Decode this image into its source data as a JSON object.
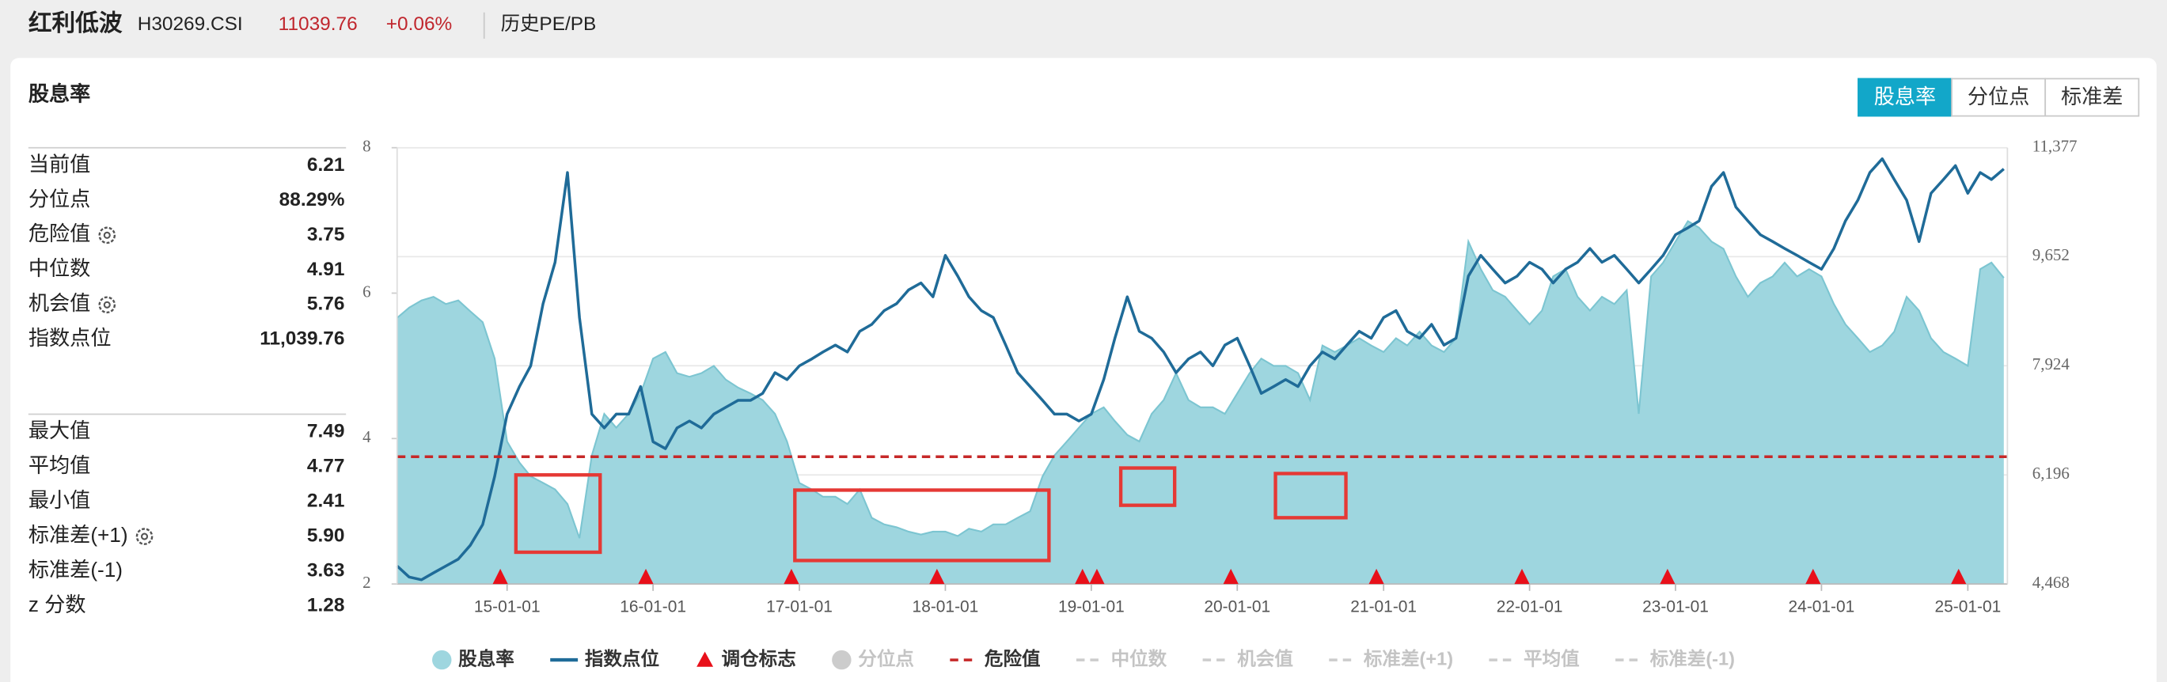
{
  "header": {
    "title": "红利低波",
    "code": "H30269.CSI",
    "price": "11039.76",
    "change": "+0.06%",
    "link": "历史PE/PB"
  },
  "panel": {
    "title": "股息率",
    "tabs": [
      {
        "label": "股息率",
        "active": true
      },
      {
        "label": "分位点",
        "active": false
      },
      {
        "label": "标准差",
        "active": false
      }
    ],
    "stats": [
      [
        {
          "label": "当前值",
          "value": "6.21"
        },
        {
          "label": "分位点",
          "value": "88.29%"
        },
        {
          "label": "危险值",
          "value": "3.75",
          "gear": true
        },
        {
          "label": "中位数",
          "value": "4.91"
        },
        {
          "label": "机会值",
          "value": "5.76",
          "gear": true
        },
        {
          "label": "指数点位",
          "value": "11,039.76"
        }
      ],
      [
        {
          "label": "最大值",
          "value": "7.49"
        },
        {
          "label": "平均值",
          "value": "4.77"
        },
        {
          "label": "最小值",
          "value": "2.41"
        },
        {
          "label": "标准差(+1)",
          "value": "5.90",
          "gear": true
        },
        {
          "label": "标准差(-1)",
          "value": "3.63"
        },
        {
          "label": "z 分数",
          "value": "1.28"
        }
      ]
    ]
  },
  "chart_data": {
    "type": "area-line",
    "x": [
      "14-04-01",
      "14-05-01",
      "14-06-01",
      "14-07-01",
      "14-08-01",
      "14-09-01",
      "14-10-01",
      "14-11-01",
      "14-12-01",
      "15-01-01",
      "15-02-01",
      "15-03-01",
      "15-04-01",
      "15-05-01",
      "15-06-01",
      "15-07-01",
      "15-08-01",
      "15-09-01",
      "15-10-01",
      "15-11-01",
      "15-12-01",
      "16-01-01",
      "16-02-01",
      "16-03-01",
      "16-04-01",
      "16-05-01",
      "16-06-01",
      "16-07-01",
      "16-08-01",
      "16-09-01",
      "16-10-01",
      "16-11-01",
      "16-12-01",
      "17-01-01",
      "17-02-01",
      "17-03-01",
      "17-04-01",
      "17-05-01",
      "17-06-01",
      "17-07-01",
      "17-08-01",
      "17-09-01",
      "17-10-01",
      "17-11-01",
      "17-12-01",
      "18-01-01",
      "18-02-01",
      "18-03-01",
      "18-04-01",
      "18-05-01",
      "18-06-01",
      "18-07-01",
      "18-08-01",
      "18-09-01",
      "18-10-01",
      "18-11-01",
      "18-12-01",
      "19-01-01",
      "19-02-01",
      "19-03-01",
      "19-04-01",
      "19-05-01",
      "19-06-01",
      "19-07-01",
      "19-08-01",
      "19-09-01",
      "19-10-01",
      "19-11-01",
      "19-12-01",
      "20-01-01",
      "20-02-01",
      "20-03-01",
      "20-04-01",
      "20-05-01",
      "20-06-01",
      "20-07-01",
      "20-08-01",
      "20-09-01",
      "20-10-01",
      "20-11-01",
      "20-12-01",
      "21-01-01",
      "21-02-01",
      "21-03-01",
      "21-04-01",
      "21-05-01",
      "21-06-01",
      "21-07-01",
      "21-08-01",
      "21-09-01",
      "21-10-01",
      "21-11-01",
      "21-12-01",
      "22-01-01",
      "22-02-01",
      "22-03-01",
      "22-04-01",
      "22-05-01",
      "22-06-01",
      "22-07-01",
      "22-08-01",
      "22-09-01",
      "22-10-01",
      "22-11-01",
      "22-12-01",
      "23-01-01",
      "23-02-01",
      "23-03-01",
      "23-04-01",
      "23-05-01",
      "23-06-01",
      "23-07-01",
      "23-08-01",
      "23-09-01",
      "23-10-01",
      "23-11-01",
      "23-12-01",
      "24-01-01",
      "24-02-01",
      "24-03-01",
      "24-04-01",
      "24-05-01",
      "24-06-01",
      "24-07-01",
      "24-08-01",
      "24-09-01",
      "24-10-01",
      "24-11-01",
      "24-12-01",
      "25-01-01",
      "25-02-01",
      "25-03-01",
      "25-04-01"
    ],
    "series": [
      {
        "name": "股息率",
        "color": "#9ed6df",
        "values": [
          5.66,
          5.8,
          5.9,
          5.95,
          5.85,
          5.9,
          5.75,
          5.6,
          5.1,
          3.96,
          3.67,
          3.48,
          3.39,
          3.3,
          3.1,
          2.63,
          3.77,
          4.34,
          4.15,
          4.34,
          4.62,
          5.1,
          5.19,
          4.9,
          4.85,
          4.9,
          5.0,
          4.81,
          4.7,
          4.62,
          4.53,
          4.34,
          3.96,
          3.39,
          3.3,
          3.2,
          3.2,
          3.1,
          3.3,
          2.91,
          2.82,
          2.78,
          2.72,
          2.68,
          2.72,
          2.72,
          2.66,
          2.76,
          2.72,
          2.82,
          2.82,
          2.91,
          3.0,
          3.48,
          3.77,
          3.96,
          4.15,
          4.34,
          4.43,
          4.24,
          4.05,
          3.96,
          4.34,
          4.53,
          4.9,
          4.53,
          4.43,
          4.43,
          4.34,
          4.62,
          4.9,
          5.1,
          5.0,
          5.0,
          4.9,
          4.53,
          5.28,
          5.19,
          5.28,
          5.38,
          5.28,
          5.19,
          5.38,
          5.28,
          5.47,
          5.28,
          5.19,
          5.38,
          6.71,
          6.33,
          6.04,
          5.95,
          5.76,
          5.57,
          5.76,
          6.23,
          6.33,
          5.95,
          5.76,
          5.95,
          5.85,
          6.04,
          4.34,
          6.23,
          6.42,
          6.71,
          6.99,
          6.9,
          6.71,
          6.61,
          6.23,
          5.95,
          6.14,
          6.23,
          6.42,
          6.23,
          6.33,
          6.23,
          5.85,
          5.57,
          5.38,
          5.19,
          5.28,
          5.47,
          5.95,
          5.76,
          5.38,
          5.19,
          5.1,
          5.0,
          6.33,
          6.42,
          6.21
        ]
      },
      {
        "name": "指数点位",
        "color": "#1f6b98",
        "axis": "y2",
        "values": [
          4753,
          4578,
          4535,
          4644,
          4753,
          4862,
          5081,
          5409,
          6174,
          7158,
          7595,
          7923,
          8907,
          9563,
          10984,
          8688,
          7158,
          6939,
          7158,
          7158,
          7595,
          6721,
          6611,
          6939,
          7049,
          6939,
          7158,
          7267,
          7377,
          7377,
          7486,
          7814,
          7705,
          7923,
          8032,
          8142,
          8251,
          8142,
          8470,
          8579,
          8797,
          8907,
          9125,
          9235,
          9016,
          9672,
          9344,
          9016,
          8797,
          8688,
          8251,
          7814,
          7595,
          7377,
          7158,
          7158,
          7049,
          7158,
          7705,
          8360,
          9016,
          8470,
          8360,
          8142,
          7814,
          8032,
          8142,
          7923,
          8251,
          8360,
          7923,
          7486,
          7595,
          7705,
          7595,
          7923,
          8142,
          8032,
          8251,
          8470,
          8360,
          8688,
          8797,
          8470,
          8360,
          8579,
          8251,
          8360,
          9344,
          9672,
          9453,
          9235,
          9344,
          9563,
          9453,
          9235,
          9453,
          9563,
          9781,
          9563,
          9672,
          9453,
          9235,
          9453,
          9672,
          10000,
          10109,
          10218,
          10765,
          10984,
          10437,
          10218,
          10000,
          9891,
          9781,
          9672,
          9563,
          9453,
          9781,
          10218,
          10546,
          10984,
          11202,
          10874,
          10546,
          9891,
          10656,
          10874,
          11093,
          10656,
          10984,
          10874,
          11040
        ]
      }
    ],
    "markers": {
      "name": "调仓标志",
      "color": "#e8101a",
      "x": [
        "14-12-15",
        "15-12-14",
        "16-12-12",
        "17-12-11",
        "18-12-10",
        "19-01-15",
        "19-12-16",
        "20-12-14",
        "21-12-13",
        "22-12-12",
        "23-12-11",
        "24-12-09"
      ]
    },
    "overlays": [
      {
        "name": "分位点",
        "color": "#cccccc",
        "shown": false
      },
      {
        "name": "危险值",
        "color": "#c62828",
        "shown": true,
        "value": 3.75
      },
      {
        "name": "中位数",
        "color": "#cccccc",
        "shown": false
      },
      {
        "name": "机会值",
        "color": "#cccccc",
        "shown": false
      },
      {
        "name": "标准差(+1)",
        "color": "#cccccc",
        "shown": false
      },
      {
        "name": "平均值",
        "color": "#cccccc",
        "shown": false
      },
      {
        "name": "标准差(-1)",
        "color": "#cccccc",
        "shown": false
      }
    ],
    "xlim": [
      "14-04-01",
      "25-04-10"
    ],
    "xticks": [
      "15-01-01",
      "16-01-01",
      "17-01-01",
      "18-01-01",
      "19-01-01",
      "20-01-01",
      "21-01-01",
      "22-01-01",
      "23-01-01",
      "24-01-01",
      "25-01-01"
    ],
    "ylim": [
      2,
      8
    ],
    "yticks": [
      2,
      4,
      6,
      8
    ],
    "y2lim": [
      4468,
      11377
    ],
    "y2ticks": [
      {
        "value": 4468,
        "label": "4,468"
      },
      {
        "value": 6196,
        "label": "6,196"
      },
      {
        "value": 7924,
        "label": "7,924"
      },
      {
        "value": 9652,
        "label": "9,652"
      },
      {
        "value": 11377,
        "label": "11,377"
      }
    ],
    "grid": true
  }
}
